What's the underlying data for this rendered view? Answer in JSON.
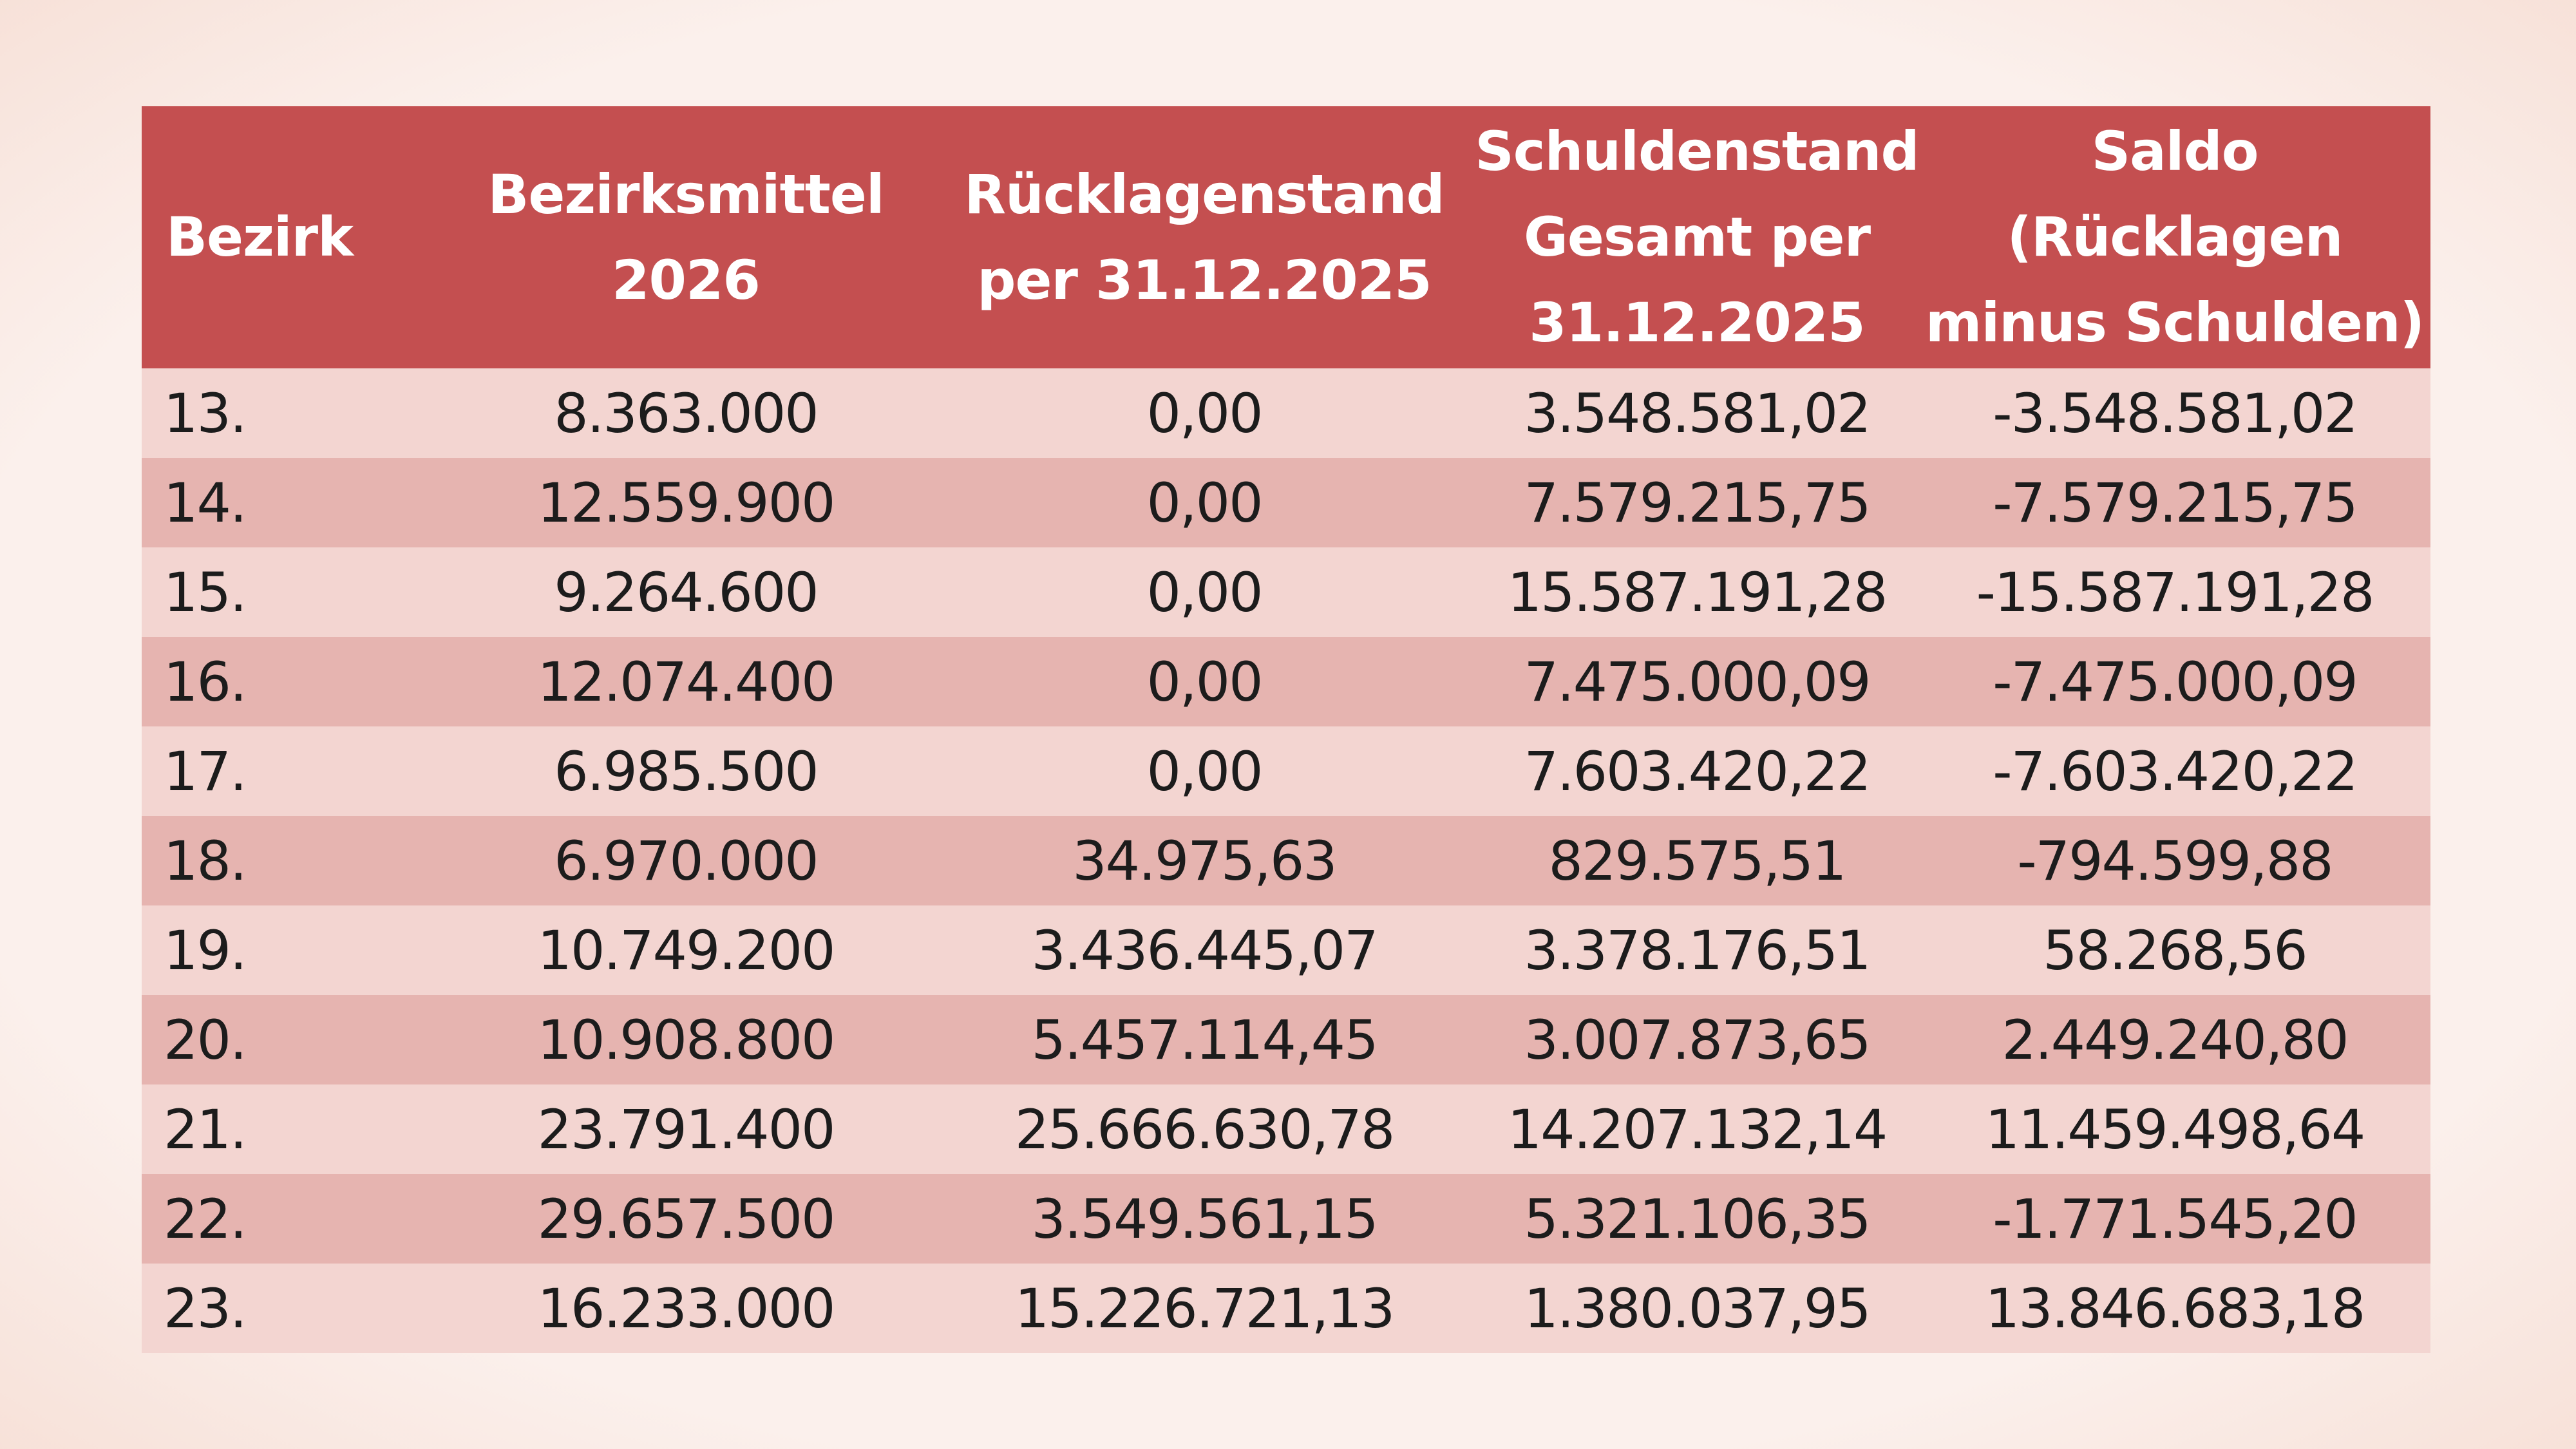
{
  "table": {
    "headers": [
      "Bezirk",
      "Bezirksmittel\n2026",
      "Rücklagenstand\nper 31.12.2025",
      "Schuldenstand\nGesamt per\n31.12.2025",
      "Saldo\n(Rücklagen\nminus Schulden)"
    ],
    "rows": [
      [
        "13.",
        "8.363.000",
        "0,00",
        "3.548.581,02",
        "-3.548.581,02"
      ],
      [
        "14.",
        "12.559.900",
        "0,00",
        "7.579.215,75",
        "-7.579.215,75"
      ],
      [
        "15.",
        "9.264.600",
        "0,00",
        "15.587.191,28",
        "-15.587.191,28"
      ],
      [
        "16.",
        "12.074.400",
        "0,00",
        "7.475.000,09",
        "-7.475.000,09"
      ],
      [
        "17.",
        "6.985.500",
        "0,00",
        "7.603.420,22",
        "-7.603.420,22"
      ],
      [
        "18.",
        "6.970.000",
        "34.975,63",
        "829.575,51",
        "-794.599,88"
      ],
      [
        "19.",
        "10.749.200",
        "3.436.445,07",
        "3.378.176,51",
        "58.268,56"
      ],
      [
        "20.",
        "10.908.800",
        "5.457.114,45",
        "3.007.873,65",
        "2.449.240,80"
      ],
      [
        "21.",
        "23.791.400",
        "25.666.630,78",
        "14.207.132,14",
        "11.459.498,64"
      ],
      [
        "22.",
        "29.657.500",
        "3.549.561,15",
        "5.321.106,35",
        "-1.771.545,20"
      ],
      [
        "23.",
        "16.233.000",
        "15.226.721,13",
        "1.380.037,95",
        "13.846.683,18"
      ]
    ]
  },
  "colors": {
    "header_bg": "#c44f50",
    "row_light": "#f3d5d1",
    "row_dark": "#e6b4b0",
    "page_bg": "#fbf0ec"
  }
}
